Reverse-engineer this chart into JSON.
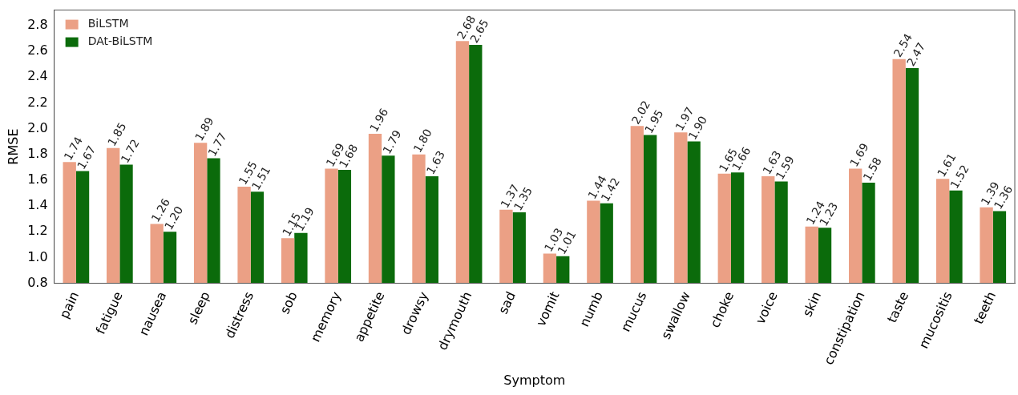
{
  "chart_data": {
    "type": "bar",
    "xlabel": "Symptom",
    "ylabel": "RMSE",
    "categories": [
      "pain",
      "fatigue",
      "nausea",
      "sleep",
      "distress",
      "sob",
      "memory",
      "appetite",
      "drowsy",
      "drymouth",
      "sad",
      "vomit",
      "numb",
      "mucus",
      "swallow",
      "choke",
      "voice",
      "skin",
      "constipation",
      "taste",
      "mucositis",
      "teeth"
    ],
    "series": [
      {
        "name": "BiLSTM",
        "color": "#eba085",
        "values": [
          1.74,
          1.85,
          1.26,
          1.89,
          1.55,
          1.15,
          1.69,
          1.96,
          1.8,
          2.68,
          1.37,
          1.03,
          1.44,
          2.02,
          1.97,
          1.65,
          1.63,
          1.24,
          1.69,
          2.54,
          1.61,
          1.39
        ],
        "value_labels": [
          "1.74",
          "1.85",
          "1.26",
          "1.89",
          "1.55",
          "1.15",
          "1.69",
          "1.96",
          "1.80",
          "2.68",
          "1.37",
          "1.03",
          "1.44",
          "2.02",
          "1.97",
          "1.65",
          "1.63",
          "1.24",
          "1.69",
          "2.54",
          "1.61",
          "1.39"
        ]
      },
      {
        "name": "DAt-BiLSTM",
        "color": "#0b6b0b",
        "values": [
          1.67,
          1.72,
          1.2,
          1.77,
          1.51,
          1.19,
          1.68,
          1.79,
          1.63,
          2.65,
          1.35,
          1.01,
          1.42,
          1.95,
          1.9,
          1.66,
          1.59,
          1.23,
          1.58,
          2.47,
          1.52,
          1.36
        ],
        "value_labels": [
          "1.67",
          "1.72",
          "1.20",
          "1.77",
          "1.51",
          "1.19",
          "1.68",
          "1.79",
          "1.63",
          "2.65",
          "1.35",
          "1.01",
          "1.42",
          "1.95",
          "1.90",
          "1.66",
          "1.59",
          "1.23",
          "1.58",
          "2.47",
          "1.52",
          "1.36"
        ]
      }
    ],
    "ylim": [
      0.8,
      2.92
    ],
    "yticks": [
      {
        "value": 0.8,
        "label": "0.8"
      },
      {
        "value": 1.0,
        "label": "1.0"
      },
      {
        "value": 1.2,
        "label": "1.2"
      },
      {
        "value": 1.4,
        "label": "1.4"
      },
      {
        "value": 1.6,
        "label": "1.6"
      },
      {
        "value": 1.8,
        "label": "1.8"
      },
      {
        "value": 2.0,
        "label": "2.0"
      },
      {
        "value": 2.2,
        "label": "2.2"
      },
      {
        "value": 2.4,
        "label": "2.4"
      },
      {
        "value": 2.6,
        "label": "2.6"
      },
      {
        "value": 2.8,
        "label": "2.8"
      }
    ],
    "grid": false,
    "legend": "top left"
  }
}
